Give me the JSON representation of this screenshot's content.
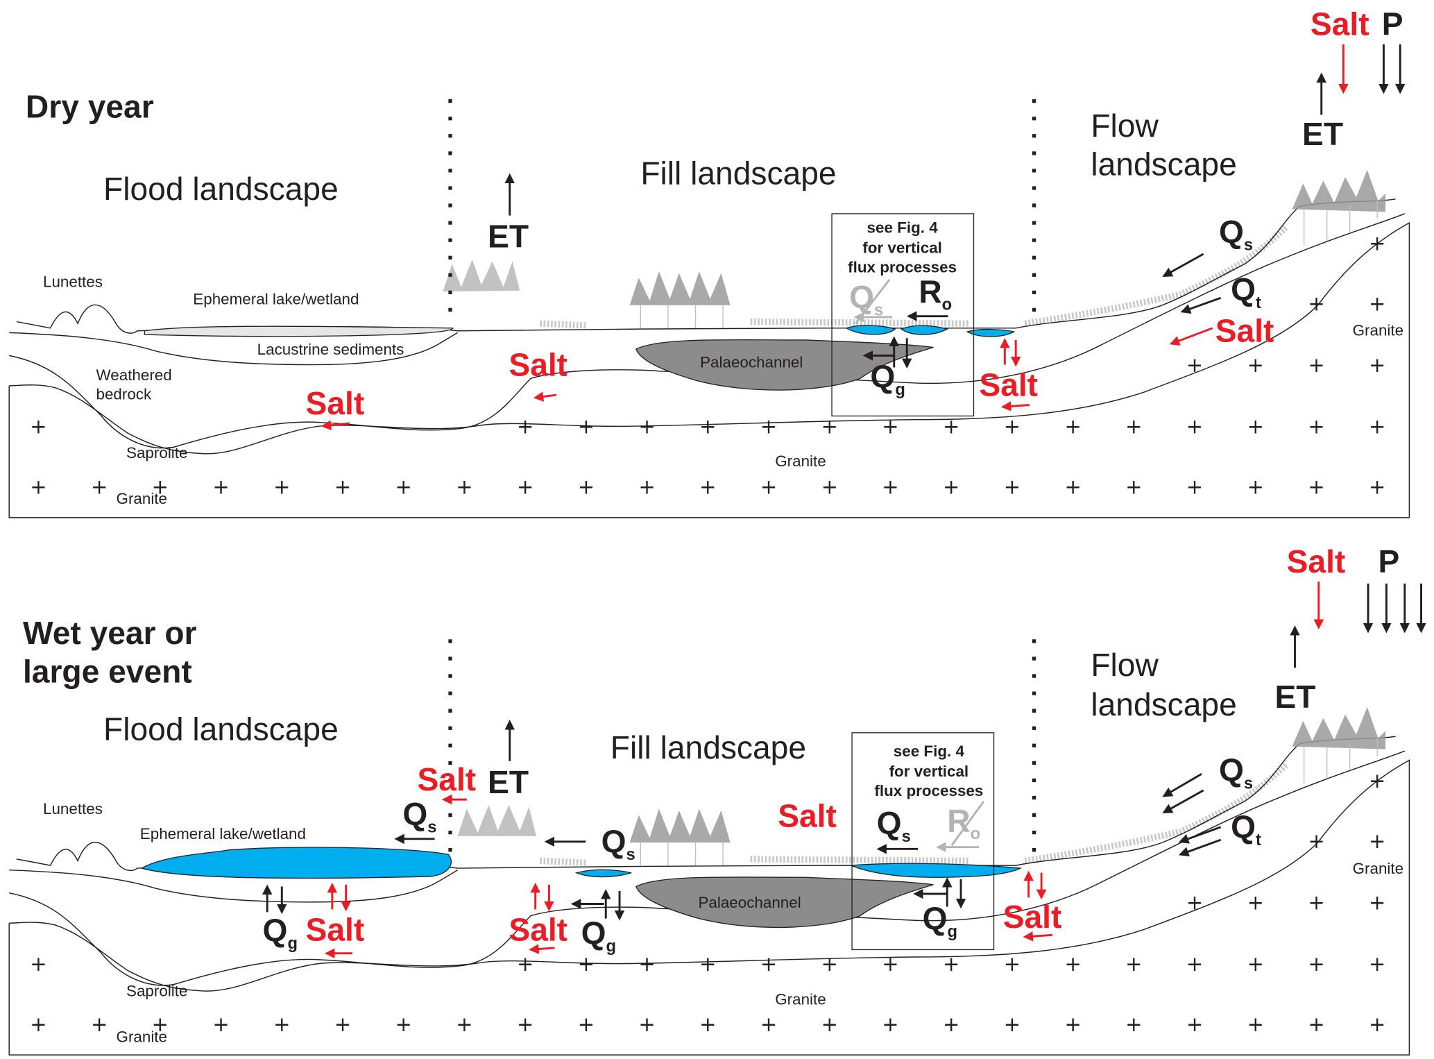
{
  "colors": {
    "salt": "#ed1c24",
    "water": "#00aeef",
    "palaeochannel": "#8c8c8c",
    "dry_lake": "#e6e6e6",
    "vegetation": "#b3b3b3",
    "inactive_flux": "#b3b3b3"
  },
  "top": {
    "title": "Dry year",
    "flood": "Flood landscape",
    "fill": "Fill landscape",
    "flow1": "Flow",
    "flow2": "landscape",
    "et": "ET",
    "et_right": "ET",
    "salt_in": "Salt",
    "p": "P",
    "lunettes": "Lunettes",
    "lake": "Ephemeral lake/wetland",
    "lacustrine": "Lacustrine sediments",
    "weathered1": "Weathered",
    "weathered2": "bedrock",
    "saprolite": "Saprolite",
    "granite_left": "Granite",
    "granite_mid": "Granite",
    "granite_right": "Granite",
    "palaeochannel": "Palaeochannel",
    "box": [
      "see Fig. 4",
      "for vertical",
      "flux processes"
    ],
    "qs_crossed": "Q",
    "qs_crossed_sub": "s",
    "ro": "R",
    "ro_sub": "o",
    "qg": "Q",
    "qg_sub": "g",
    "qs_right": "Q",
    "qs_right_sub": "s",
    "qt": "Q",
    "qt_sub": "t",
    "salt_slope": "Salt",
    "salt_fill": "Salt",
    "salt_flood": "Salt",
    "salt_pond": "Salt"
  },
  "bottom": {
    "title1": "Wet year or",
    "title2": "large event",
    "flood": "Flood landscape",
    "fill": "Fill landscape",
    "flow1": "Flow",
    "flow2": "landscape",
    "et": "ET",
    "et_right": "ET",
    "salt_in": "Salt",
    "p": "P",
    "lunettes": "Lunettes",
    "lake": "Ephemeral lake/wetland",
    "saprolite": "Saprolite",
    "granite_left": "Granite",
    "granite_mid": "Granite",
    "granite_right": "Granite",
    "palaeochannel": "Palaeochannel",
    "box": [
      "see Fig. 4",
      "for vertical",
      "flux processes"
    ],
    "salt_et": "Salt",
    "qs_lake": "Q",
    "qs_lake_sub": "s",
    "qs_fill": "Q",
    "qs_fill_sub": "s",
    "salt_fill_top": "Salt",
    "qs_box": "Q",
    "qs_box_sub": "s",
    "ro_crossed": "R",
    "ro_crossed_sub": "o",
    "qg_lake": "Q",
    "qg_lake_sub": "g",
    "salt_lake": "Salt",
    "salt_fill": "Salt",
    "qg_fill": "Q",
    "qg_fill_sub": "g",
    "qg_box": "Q",
    "qg_box_sub": "g",
    "salt_pond": "Salt",
    "qs_right": "Q",
    "qs_right_sub": "s",
    "qt": "Q",
    "qt_sub": "t"
  }
}
